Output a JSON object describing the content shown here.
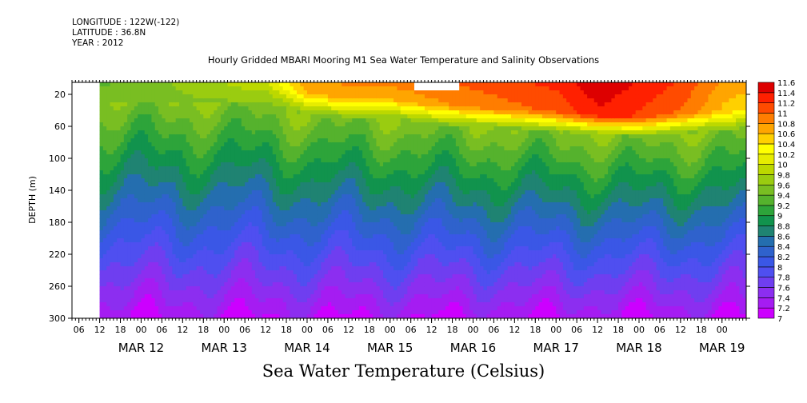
{
  "header": {
    "longitude": "LONGITUDE : 122W(-122)",
    "latitude": "LATITUDE : 36.8N",
    "year": "YEAR : 2012"
  },
  "chart_data": {
    "type": "heatmap",
    "title": "Hourly Gridded MBARI Mooring M1 Sea Water Temperature and Salinity Observations",
    "subtitle": "Sea Water Temperature (Celsius)",
    "ylabel": "DEPTH (m)",
    "xlabel": "",
    "x_range": [
      "2012-03-11T04:00",
      "2012-03-19T07:00"
    ],
    "ylim": [
      300,
      5
    ],
    "y_ticks": [
      20,
      60,
      100,
      140,
      180,
      220,
      260,
      300
    ],
    "x_hour_ticks": [
      {
        "t": "2012-03-11T06:00",
        "label": "06"
      },
      {
        "t": "2012-03-11T12:00",
        "label": "12"
      },
      {
        "t": "2012-03-11T18:00",
        "label": "18"
      },
      {
        "t": "2012-03-12T00:00",
        "label": "00"
      },
      {
        "t": "2012-03-12T06:00",
        "label": "06"
      },
      {
        "t": "2012-03-12T12:00",
        "label": "12"
      },
      {
        "t": "2012-03-12T18:00",
        "label": "18"
      },
      {
        "t": "2012-03-13T00:00",
        "label": "00"
      },
      {
        "t": "2012-03-13T06:00",
        "label": "06"
      },
      {
        "t": "2012-03-13T12:00",
        "label": "12"
      },
      {
        "t": "2012-03-13T18:00",
        "label": "18"
      },
      {
        "t": "2012-03-14T00:00",
        "label": "00"
      },
      {
        "t": "2012-03-14T06:00",
        "label": "06"
      },
      {
        "t": "2012-03-14T12:00",
        "label": "12"
      },
      {
        "t": "2012-03-14T18:00",
        "label": "18"
      },
      {
        "t": "2012-03-15T00:00",
        "label": "00"
      },
      {
        "t": "2012-03-15T06:00",
        "label": "06"
      },
      {
        "t": "2012-03-15T12:00",
        "label": "12"
      },
      {
        "t": "2012-03-15T18:00",
        "label": "18"
      },
      {
        "t": "2012-03-16T00:00",
        "label": "00"
      },
      {
        "t": "2012-03-16T06:00",
        "label": "06"
      },
      {
        "t": "2012-03-16T12:00",
        "label": "12"
      },
      {
        "t": "2012-03-16T18:00",
        "label": "18"
      },
      {
        "t": "2012-03-17T00:00",
        "label": "00"
      },
      {
        "t": "2012-03-17T06:00",
        "label": "06"
      },
      {
        "t": "2012-03-17T12:00",
        "label": "12"
      },
      {
        "t": "2012-03-17T18:00",
        "label": "18"
      },
      {
        "t": "2012-03-18T00:00",
        "label": "00"
      },
      {
        "t": "2012-03-18T06:00",
        "label": "06"
      },
      {
        "t": "2012-03-18T12:00",
        "label": "12"
      },
      {
        "t": "2012-03-18T18:00",
        "label": "18"
      },
      {
        "t": "2012-03-19T00:00",
        "label": "00"
      }
    ],
    "x_day_labels": [
      {
        "t": "2012-03-12T00:00",
        "label": "MAR 12"
      },
      {
        "t": "2012-03-13T00:00",
        "label": "MAR 13"
      },
      {
        "t": "2012-03-14T00:00",
        "label": "MAR 14"
      },
      {
        "t": "2012-03-15T00:00",
        "label": "MAR 15"
      },
      {
        "t": "2012-03-16T00:00",
        "label": "MAR 16"
      },
      {
        "t": "2012-03-17T00:00",
        "label": "MAR 17"
      },
      {
        "t": "2012-03-18T00:00",
        "label": "MAR 18"
      },
      {
        "t": "2012-03-19T00:00",
        "label": "MAR 19"
      }
    ],
    "data_start": "2012-03-11T12:00",
    "missing_blocks": [
      {
        "t0": "2012-03-15T07:00",
        "t1": "2012-03-15T20:00",
        "depth0": 5,
        "depth1": 15
      }
    ],
    "colorbar": {
      "levels": [
        7,
        7.2,
        7.4,
        7.6,
        7.8,
        8,
        8.2,
        8.4,
        8.6,
        8.8,
        9,
        9.2,
        9.4,
        9.6,
        9.8,
        10,
        10.2,
        10.4,
        10.6,
        10.8,
        11,
        11.2,
        11.4,
        11.6
      ],
      "labels": [
        "7",
        "7.2",
        "7.4",
        "7.6",
        "7.8",
        "8",
        "8.2",
        "8.4",
        "8.6",
        "8.8",
        "9",
        "9.2",
        "9.4",
        "9.6",
        "9.8",
        "10",
        "10.2",
        "10.4",
        "10.6",
        "10.8",
        "11",
        "11.2",
        "11.4",
        "11.6"
      ],
      "colors": [
        "#cc00ff",
        "#a51cf2",
        "#8c2ef0",
        "#6f3ef0",
        "#4f4ff0",
        "#3a57e6",
        "#2f62cc",
        "#246eaf",
        "#1f8372",
        "#11934d",
        "#2da43a",
        "#55b22d",
        "#79be22",
        "#9acc10",
        "#bcd800",
        "#e6ec00",
        "#ffff00",
        "#ffd000",
        "#ffa500",
        "#ff7d00",
        "#ff4b00",
        "#ff2000",
        "#dd0000",
        "#a50000"
      ]
    },
    "surface_profile": [
      {
        "t": "2012-03-11T12:00",
        "v": 9.6
      },
      {
        "t": "2012-03-12T12:00",
        "v": 9.9
      },
      {
        "t": "2012-03-13T12:00",
        "v": 10.2
      },
      {
        "t": "2012-03-14T00:00",
        "v": 10.8
      },
      {
        "t": "2012-03-14T12:00",
        "v": 10.9
      },
      {
        "t": "2012-03-15T00:00",
        "v": 10.9
      },
      {
        "t": "2012-03-15T12:00",
        "v": 11.0
      },
      {
        "t": "2012-03-16T00:00",
        "v": 11.1
      },
      {
        "t": "2012-03-16T12:00",
        "v": 11.2
      },
      {
        "t": "2012-03-17T00:00",
        "v": 11.3
      },
      {
        "t": "2012-03-17T12:00",
        "v": 11.6
      },
      {
        "t": "2012-03-18T00:00",
        "v": 11.4
      },
      {
        "t": "2012-03-18T12:00",
        "v": 11.2
      },
      {
        "t": "2012-03-19T00:00",
        "v": 10.8
      },
      {
        "t": "2012-03-19T07:00",
        "v": 10.7
      }
    ],
    "mixed_layer_depth": [
      {
        "t": "2012-03-11T12:00",
        "v": 5
      },
      {
        "t": "2012-03-13T12:00",
        "v": 8
      },
      {
        "t": "2012-03-14T00:00",
        "v": 22
      },
      {
        "t": "2012-03-15T00:00",
        "v": 26
      },
      {
        "t": "2012-03-15T12:00",
        "v": 32
      },
      {
        "t": "2012-03-16T00:00",
        "v": 36
      },
      {
        "t": "2012-03-16T12:00",
        "v": 38
      },
      {
        "t": "2012-03-17T00:00",
        "v": 42
      },
      {
        "t": "2012-03-17T12:00",
        "v": 46
      },
      {
        "t": "2012-03-18T00:00",
        "v": 48
      },
      {
        "t": "2012-03-18T12:00",
        "v": 44
      },
      {
        "t": "2012-03-19T07:00",
        "v": 38
      }
    ]
  }
}
